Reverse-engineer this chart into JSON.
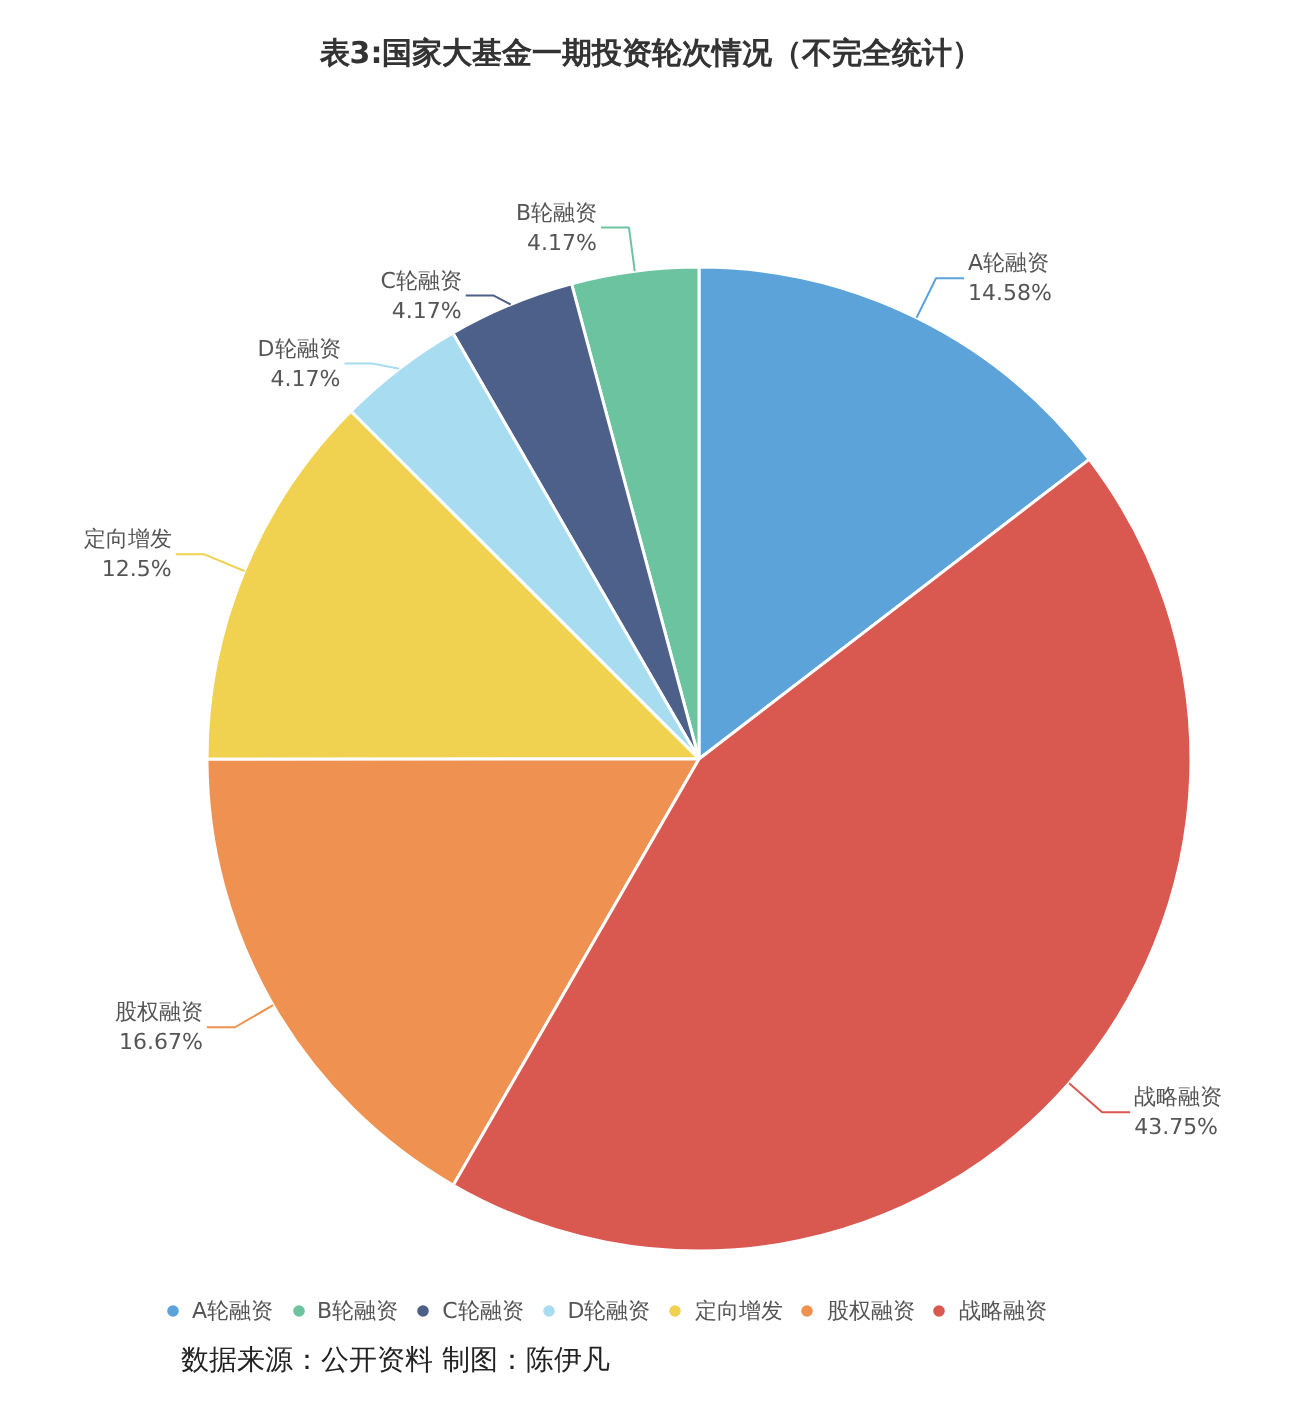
{
  "chart_data": {
    "type": "pie",
    "title": "表3:国家大基金一期投资轮次情况（不完全统计）",
    "categories": [
      "A轮融资",
      "B轮融资",
      "C轮融资",
      "D轮融资",
      "定向增发",
      "股权融资",
      "战略融资"
    ],
    "values": [
      14.58,
      4.17,
      4.17,
      4.17,
      12.5,
      16.67,
      43.75
    ],
    "value_labels": [
      "14.58%",
      "4.17%",
      "4.17%",
      "4.17%",
      "12.5%",
      "16.67%",
      "43.75%"
    ],
    "colors": [
      "#5ba3d9",
      "#6cc3a0",
      "#4d6089",
      "#a8dcf0",
      "#f0d250",
      "#ef9150",
      "#d95850"
    ],
    "legend": "bottom",
    "annotations": [
      "数据来源：公开资料 制图：陈伊凡"
    ]
  }
}
